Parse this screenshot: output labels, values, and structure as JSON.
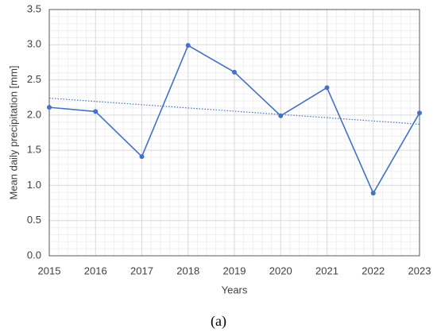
{
  "chart_data": {
    "type": "line",
    "x_label": "Years",
    "y_label": "Mean daily precipitation [mm]",
    "caption": "(a)",
    "x": [
      2015,
      2016,
      2017,
      2018,
      2019,
      2020,
      2021,
      2022,
      2023
    ],
    "series": [
      {
        "name": "Mean daily precipitation",
        "color": "#4472c4",
        "values": [
          2.11,
          2.05,
          1.41,
          2.99,
          2.61,
          1.99,
          2.39,
          0.89,
          2.03
        ]
      }
    ],
    "trendline": {
      "x": [
        2015,
        2023
      ],
      "values": [
        2.24,
        1.87
      ],
      "color": "#4472c4",
      "style": "dotted"
    },
    "xlim": [
      2015,
      2023
    ],
    "xticks": [
      2015,
      2016,
      2017,
      2018,
      2019,
      2020,
      2021,
      2022,
      2023
    ],
    "ylim": [
      0,
      3.5
    ],
    "yticks": [
      {
        "value": 0,
        "label": "0.0"
      },
      0.5,
      {
        "value": 1,
        "label": "1.0"
      },
      1.5,
      {
        "value": 2,
        "label": "2.0"
      },
      2.5,
      {
        "value": 3,
        "label": "3.0"
      },
      3.5
    ],
    "grid": true,
    "minor_grid": {
      "x_divisions": 5,
      "y_divisions": 5
    }
  }
}
